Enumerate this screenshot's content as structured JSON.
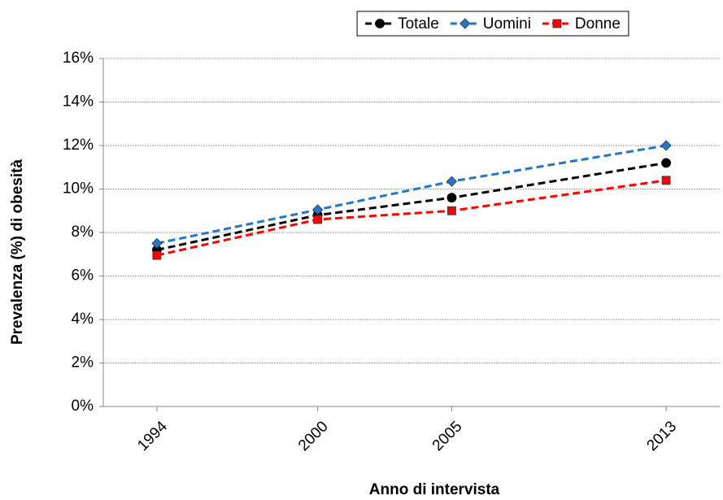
{
  "chart_data": {
    "type": "line",
    "x_label": "Anno di intervista",
    "y_label": "Prevalenza (%)  di obesità",
    "x": [
      1994,
      2000,
      2005,
      2013
    ],
    "xlim": [
      1992,
      2015
    ],
    "xticks": [
      1994,
      2000,
      2005,
      2013
    ],
    "ylim": [
      0,
      16
    ],
    "yticks": [
      {
        "value": 0,
        "label": "0%"
      },
      {
        "value": 2,
        "label": "2%"
      },
      {
        "value": 4,
        "label": "4%"
      },
      {
        "value": 6,
        "label": "6%"
      },
      {
        "value": 8,
        "label": "8%"
      },
      {
        "value": 10,
        "label": "10%"
      },
      {
        "value": 12,
        "label": "12%"
      },
      {
        "value": 14,
        "label": "14%"
      },
      {
        "value": 16,
        "label": "16%"
      }
    ],
    "grid": true,
    "legend": "top",
    "series": [
      {
        "name": "Totale",
        "color": "#000000",
        "marker": "circle",
        "values": [
          7.2,
          8.8,
          9.6,
          11.2
        ]
      },
      {
        "name": "Uomini",
        "color": "#1f78c8",
        "marker": "diamond",
        "values": [
          7.5,
          9.05,
          10.35,
          12.0
        ]
      },
      {
        "name": "Donne",
        "color": "#ff0000",
        "marker": "square",
        "values": [
          6.95,
          8.6,
          9.0,
          10.4
        ]
      }
    ]
  }
}
